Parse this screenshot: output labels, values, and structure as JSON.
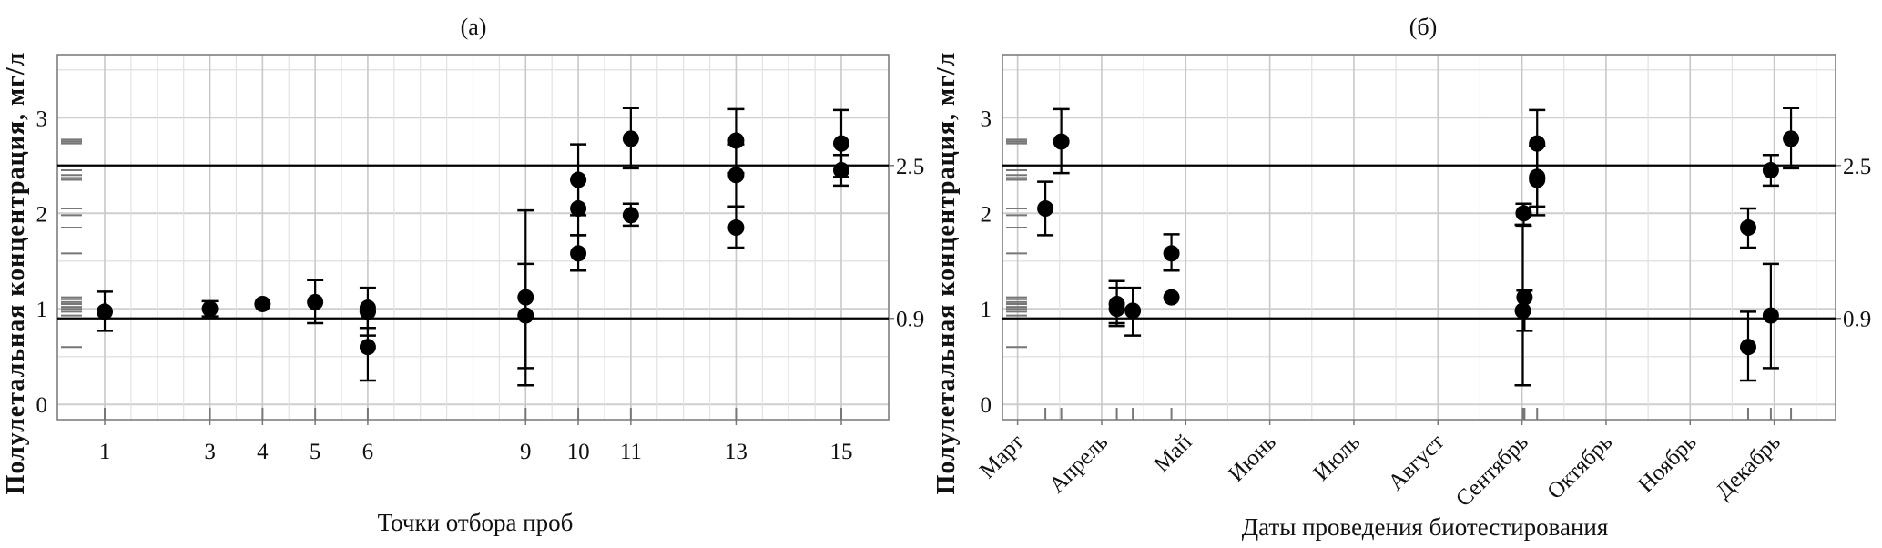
{
  "chart_data": [
    {
      "type": "scatter",
      "title": "(a)",
      "xlabel": "Точки отбора проб",
      "ylabel": "Полулетальная концентрация, мг/л",
      "xlim": [
        0.1,
        15.9
      ],
      "ylim": [
        -0.16,
        3.66
      ],
      "x_ticks": [
        1,
        3,
        4,
        5,
        6,
        9,
        10,
        11,
        13,
        15
      ],
      "x_tick_labels": [
        "1",
        "3",
        "4",
        "5",
        "6",
        "9",
        "10",
        "11",
        "13",
        "15"
      ],
      "y_ticks": [
        0,
        1,
        2,
        3
      ],
      "y_tick_labels": [
        "0",
        "1",
        "2",
        "3"
      ],
      "grid": true,
      "reference_lines": [
        {
          "y": 2.5,
          "label": "2.5"
        },
        {
          "y": 0.9,
          "label": "0.9"
        }
      ],
      "points": [
        {
          "x": 1,
          "y": 0.97,
          "lo": 0.77,
          "hi": 1.18
        },
        {
          "x": 3,
          "y": 1.0,
          "lo": 0.92,
          "hi": 1.08
        },
        {
          "x": 4,
          "y": 1.05
        },
        {
          "x": 5,
          "y": 1.07,
          "lo": 0.85,
          "hi": 1.3
        },
        {
          "x": 6,
          "y": 1.01,
          "lo": 0.8,
          "hi": 1.22
        },
        {
          "x": 6,
          "y": 0.97,
          "lo": 0.72,
          "hi": 0.97
        },
        {
          "x": 6,
          "y": 0.6,
          "lo": 0.25,
          "hi": 0.97
        },
        {
          "x": 9,
          "y": 1.12,
          "lo": 0.38,
          "hi": 2.03
        },
        {
          "x": 9,
          "y": 0.93,
          "lo": 0.2,
          "hi": 1.47
        },
        {
          "x": 10,
          "y": 2.35,
          "lo": 1.98,
          "hi": 2.72
        },
        {
          "x": 10,
          "y": 2.05,
          "lo": 1.77,
          "hi": 2.35
        },
        {
          "x": 10,
          "y": 1.58,
          "lo": 1.4,
          "hi": 1.77
        },
        {
          "x": 11,
          "y": 2.78,
          "lo": 2.47,
          "hi": 3.1
        },
        {
          "x": 11,
          "y": 1.98,
          "lo": 1.87,
          "hi": 2.1
        },
        {
          "x": 13,
          "y": 2.76,
          "lo": 2.42,
          "hi": 3.09
        },
        {
          "x": 13,
          "y": 2.4,
          "lo": 2.07,
          "hi": 2.72
        },
        {
          "x": 13,
          "y": 1.85,
          "lo": 1.64,
          "hi": 2.07
        },
        {
          "x": 15,
          "y": 2.73,
          "lo": 2.38,
          "hi": 3.08
        },
        {
          "x": 15,
          "y": 2.45,
          "lo": 2.29,
          "hi": 2.61
        }
      ],
      "rug_y": [
        2.77,
        2.75,
        2.73,
        2.45,
        2.4,
        2.37,
        2.35,
        2.05,
        1.98,
        1.85,
        1.58,
        1.12,
        1.1,
        1.07,
        1.05,
        1.02,
        1.0,
        0.97,
        0.93,
        0.6
      ]
    },
    {
      "type": "scatter",
      "title": "(б)",
      "xlabel": "Даты проведения биотестирования",
      "ylabel": "Полулетальная концентрация, мг/л",
      "xlim": [
        -0.18,
        9.73
      ],
      "ylim": [
        -0.16,
        3.66
      ],
      "x_ticks": [
        0,
        1,
        2,
        3,
        4,
        5,
        6,
        7,
        8,
        9
      ],
      "x_tick_labels": [
        "Март",
        "Апрель",
        "Май",
        "Июнь",
        "Июль",
        "Август",
        "Сентябрь",
        "Октябрь",
        "Ноябрь",
        "Декабрь"
      ],
      "y_ticks": [
        0,
        1,
        2,
        3
      ],
      "y_tick_labels": [
        "0",
        "1",
        "2",
        "3"
      ],
      "grid": true,
      "reference_lines": [
        {
          "y": 2.5,
          "label": "2.5"
        },
        {
          "y": 0.9,
          "label": "0.9"
        }
      ],
      "points": [
        {
          "x": 0.33,
          "y": 2.05,
          "lo": 1.77,
          "hi": 2.33
        },
        {
          "x": 0.52,
          "y": 2.75,
          "lo": 2.42,
          "hi": 3.09
        },
        {
          "x": 1.18,
          "y": 1.05,
          "lo": 0.82,
          "hi": 1.29
        },
        {
          "x": 1.18,
          "y": 1.0,
          "lo": 0.85,
          "hi": 1.22
        },
        {
          "x": 1.37,
          "y": 0.98,
          "lo": 0.72,
          "hi": 1.22
        },
        {
          "x": 1.83,
          "y": 1.58,
          "lo": 1.4,
          "hi": 1.78
        },
        {
          "x": 1.83,
          "y": 1.12
        },
        {
          "x": 6.02,
          "y": 2.0,
          "lo": 1.87,
          "hi": 2.1
        },
        {
          "x": 6.03,
          "y": 1.12,
          "lo": 0.77,
          "hi": 1.19
        },
        {
          "x": 6.01,
          "y": 0.98,
          "lo": 0.2,
          "hi": 1.88
        },
        {
          "x": 6.18,
          "y": 2.73,
          "lo": 2.37,
          "hi": 3.08
        },
        {
          "x": 6.18,
          "y": 2.38,
          "lo": 2.07,
          "hi": 2.7
        },
        {
          "x": 6.18,
          "y": 2.35,
          "lo": 1.98,
          "hi": 2.71
        },
        {
          "x": 8.69,
          "y": 1.85,
          "lo": 1.64,
          "hi": 2.05
        },
        {
          "x": 8.69,
          "y": 0.6,
          "lo": 0.25,
          "hi": 0.97
        },
        {
          "x": 8.96,
          "y": 2.45,
          "lo": 2.29,
          "hi": 2.61
        },
        {
          "x": 8.96,
          "y": 0.93,
          "lo": 0.38,
          "hi": 1.47
        },
        {
          "x": 9.2,
          "y": 2.78,
          "lo": 2.47,
          "hi": 3.1
        }
      ],
      "rug_y": [
        2.77,
        2.75,
        2.73,
        2.45,
        2.4,
        2.37,
        2.35,
        2.05,
        1.98,
        1.85,
        1.58,
        1.12,
        1.1,
        1.07,
        1.05,
        1.02,
        1.0,
        0.97,
        0.93,
        0.6
      ]
    }
  ]
}
